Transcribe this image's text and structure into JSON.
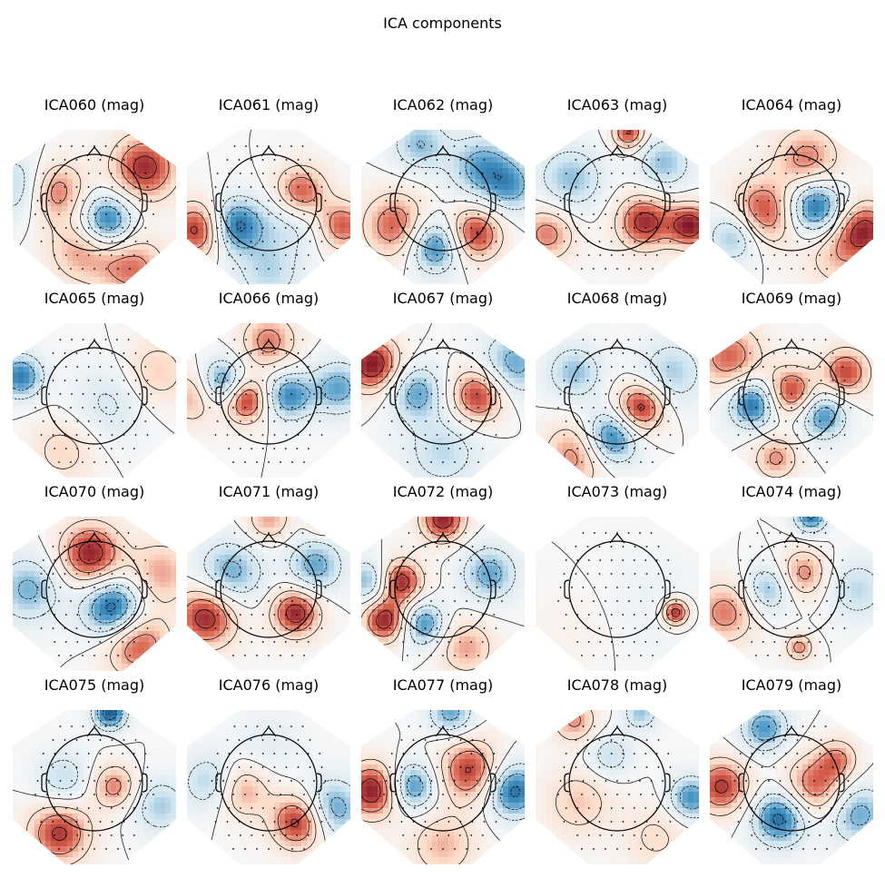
{
  "figure": {
    "title": "ICA components"
  },
  "grid": {
    "rows": 4,
    "cols": 5
  },
  "colormap": {
    "negative": "#053061",
    "neutral": "#f7f7f7",
    "positive": "#67001f",
    "contour_color": "#000000"
  },
  "panels": [
    {
      "title": "ICA060 (mag)",
      "blobs": [
        {
          "u": -0.55,
          "v": -0.15,
          "s": 0.28,
          "a": 0.8
        },
        {
          "u": 0.15,
          "v": 0.25,
          "s": 0.25,
          "a": -0.9
        },
        {
          "u": 0.65,
          "v": -0.45,
          "s": 0.3,
          "a": 0.85
        },
        {
          "u": -0.15,
          "v": 0.6,
          "s": 0.3,
          "a": 0.55
        },
        {
          "u": -0.9,
          "v": -0.2,
          "s": 0.3,
          "a": -0.6
        },
        {
          "u": 0.5,
          "v": 0.85,
          "s": 0.3,
          "a": 0.6
        }
      ]
    },
    {
      "title": "ICA061 (mag)",
      "blobs": [
        {
          "u": 0.4,
          "v": -0.1,
          "s": 0.25,
          "a": 0.95
        },
        {
          "u": -0.9,
          "v": 0.35,
          "s": 0.25,
          "a": 0.9
        },
        {
          "u": -0.45,
          "v": 0.3,
          "s": 0.25,
          "a": -0.85
        },
        {
          "u": 0.3,
          "v": 0.15,
          "s": 0.3,
          "a": -0.5
        },
        {
          "u": 0.95,
          "v": 0.3,
          "s": 0.22,
          "a": 0.7
        },
        {
          "u": 0.0,
          "v": 0.9,
          "s": 0.3,
          "a": -0.4
        }
      ]
    },
    {
      "title": "ICA062 (mag)",
      "blobs": [
        {
          "u": -0.1,
          "v": 0.55,
          "s": 0.25,
          "a": -0.85
        },
        {
          "u": 0.4,
          "v": 0.4,
          "s": 0.25,
          "a": 0.85
        },
        {
          "u": -0.6,
          "v": 0.3,
          "s": 0.3,
          "a": 0.7
        },
        {
          "u": 0.5,
          "v": -0.45,
          "s": 0.3,
          "a": -0.6
        },
        {
          "u": -0.3,
          "v": -0.75,
          "s": 0.25,
          "a": -0.5
        },
        {
          "u": 0.9,
          "v": -0.2,
          "s": 0.25,
          "a": -0.5
        }
      ]
    },
    {
      "title": "ICA063 (mag)",
      "blobs": [
        {
          "u": 0.35,
          "v": 0.25,
          "s": 0.25,
          "a": 0.85
        },
        {
          "u": 0.95,
          "v": 0.3,
          "s": 0.2,
          "a": 0.9
        },
        {
          "u": -0.6,
          "v": -0.3,
          "s": 0.3,
          "a": -0.5
        },
        {
          "u": -0.9,
          "v": 0.4,
          "s": 0.25,
          "a": 0.6
        },
        {
          "u": 0.15,
          "v": -0.9,
          "s": 0.15,
          "a": 0.8
        },
        {
          "u": 0.6,
          "v": -0.5,
          "s": 0.25,
          "a": -0.5
        }
      ]
    },
    {
      "title": "ICA064 (mag)",
      "blobs": [
        {
          "u": 0.3,
          "v": 0.05,
          "s": 0.25,
          "a": -0.9
        },
        {
          "u": -0.4,
          "v": 0.15,
          "s": 0.3,
          "a": 0.85
        },
        {
          "u": -0.7,
          "v": 0.4,
          "s": 0.25,
          "a": -0.7
        },
        {
          "u": 0.95,
          "v": 0.35,
          "s": 0.25,
          "a": 0.8
        },
        {
          "u": 0.2,
          "v": -0.55,
          "s": 0.3,
          "a": 0.6
        },
        {
          "u": 0.6,
          "v": 0.7,
          "s": 0.3,
          "a": 0.4
        }
      ]
    },
    {
      "title": "ICA065 (mag)",
      "blobs": [
        {
          "u": -0.95,
          "v": -0.25,
          "s": 0.2,
          "a": -0.75
        },
        {
          "u": 0.8,
          "v": -0.3,
          "s": 0.3,
          "a": 0.4
        },
        {
          "u": -0.4,
          "v": 0.7,
          "s": 0.3,
          "a": 0.35
        },
        {
          "u": 0.2,
          "v": 0.1,
          "s": 0.35,
          "a": -0.3
        }
      ]
    },
    {
      "title": "ICA066 (mag)",
      "blobs": [
        {
          "u": -0.3,
          "v": 0.05,
          "s": 0.2,
          "a": 0.95
        },
        {
          "u": -0.6,
          "v": -0.15,
          "s": 0.22,
          "a": -0.85
        },
        {
          "u": 0.25,
          "v": 0.0,
          "s": 0.22,
          "a": -0.7
        },
        {
          "u": 0.9,
          "v": -0.1,
          "s": 0.25,
          "a": -0.6
        },
        {
          "u": -0.95,
          "v": 0.0,
          "s": 0.25,
          "a": 0.55
        },
        {
          "u": 0.0,
          "v": -0.7,
          "s": 0.25,
          "a": 0.6
        }
      ]
    },
    {
      "title": "ICA067 (mag)",
      "blobs": [
        {
          "u": -0.9,
          "v": -0.4,
          "s": 0.25,
          "a": 0.95
        },
        {
          "u": 0.45,
          "v": 0.0,
          "s": 0.25,
          "a": 0.85
        },
        {
          "u": -0.35,
          "v": -0.05,
          "s": 0.25,
          "a": -0.6
        },
        {
          "u": 0.9,
          "v": -0.4,
          "s": 0.3,
          "a": -0.6
        },
        {
          "u": 0.0,
          "v": 0.7,
          "s": 0.35,
          "a": -0.4
        }
      ]
    },
    {
      "title": "ICA068 (mag)",
      "blobs": [
        {
          "u": 0.3,
          "v": 0.15,
          "s": 0.22,
          "a": 0.9
        },
        {
          "u": -0.1,
          "v": 0.55,
          "s": 0.25,
          "a": -0.9
        },
        {
          "u": -0.5,
          "v": 0.75,
          "s": 0.3,
          "a": 0.65
        },
        {
          "u": -0.55,
          "v": -0.3,
          "s": 0.25,
          "a": -0.5
        },
        {
          "u": 0.7,
          "v": -0.3,
          "s": 0.3,
          "a": -0.45
        }
      ]
    },
    {
      "title": "ICA069 (mag)",
      "blobs": [
        {
          "u": 0.0,
          "v": -0.05,
          "s": 0.22,
          "a": 0.8
        },
        {
          "u": -0.5,
          "v": 0.1,
          "s": 0.22,
          "a": -0.85
        },
        {
          "u": 0.4,
          "v": 0.25,
          "s": 0.22,
          "a": -0.7
        },
        {
          "u": 0.7,
          "v": -0.3,
          "s": 0.22,
          "a": 0.75
        },
        {
          "u": -0.8,
          "v": -0.5,
          "s": 0.3,
          "a": 0.65
        },
        {
          "u": -0.2,
          "v": 0.8,
          "s": 0.2,
          "a": 0.55
        }
      ]
    },
    {
      "title": "ICA070 (mag)",
      "blobs": [
        {
          "u": -0.05,
          "v": -0.45,
          "s": 0.28,
          "a": 0.9
        },
        {
          "u": 0.25,
          "v": 0.25,
          "s": 0.28,
          "a": -0.95
        },
        {
          "u": -0.85,
          "v": 0.0,
          "s": 0.3,
          "a": -0.55
        },
        {
          "u": 0.55,
          "v": 0.7,
          "s": 0.3,
          "a": 0.75
        },
        {
          "u": 0.85,
          "v": -0.2,
          "s": 0.3,
          "a": 0.5
        }
      ]
    },
    {
      "title": "ICA071 (mag)",
      "blobs": [
        {
          "u": -0.8,
          "v": 0.35,
          "s": 0.28,
          "a": 0.9
        },
        {
          "u": 0.35,
          "v": 0.3,
          "s": 0.22,
          "a": 0.9
        },
        {
          "u": -0.5,
          "v": -0.2,
          "s": 0.3,
          "a": -0.6
        },
        {
          "u": 0.6,
          "v": -0.3,
          "s": 0.25,
          "a": -0.6
        },
        {
          "u": 0.0,
          "v": -0.9,
          "s": 0.2,
          "a": 0.5
        },
        {
          "u": 0.7,
          "v": -0.9,
          "s": 0.12,
          "a": 0.7
        }
      ]
    },
    {
      "title": "ICA072 (mag)",
      "blobs": [
        {
          "u": -0.55,
          "v": -0.1,
          "s": 0.2,
          "a": 0.9
        },
        {
          "u": -0.75,
          "v": 0.4,
          "s": 0.2,
          "a": 0.9
        },
        {
          "u": -0.25,
          "v": 0.45,
          "s": 0.2,
          "a": -0.7
        },
        {
          "u": 0.0,
          "v": -0.9,
          "s": 0.2,
          "a": 0.9
        },
        {
          "u": 0.6,
          "v": -0.2,
          "s": 0.25,
          "a": -0.6
        },
        {
          "u": -0.95,
          "v": -0.1,
          "s": 0.2,
          "a": -0.6
        },
        {
          "u": 0.3,
          "v": 0.75,
          "s": 0.25,
          "a": 0.5
        }
      ]
    },
    {
      "title": "ICA073 (mag)",
      "blobs": [
        {
          "u": 0.75,
          "v": 0.3,
          "s": 0.12,
          "a": 0.95
        },
        {
          "u": 0.4,
          "v": 0.2,
          "s": 0.5,
          "a": -0.12
        },
        {
          "u": -0.5,
          "v": 0.5,
          "s": 0.4,
          "a": 0.1
        }
      ]
    },
    {
      "title": "ICA074 (mag)",
      "blobs": [
        {
          "u": 0.15,
          "v": -0.2,
          "s": 0.22,
          "a": 0.6
        },
        {
          "u": -0.3,
          "v": 0.0,
          "s": 0.22,
          "a": -0.55
        },
        {
          "u": 0.25,
          "v": -0.95,
          "s": 0.15,
          "a": -0.8
        },
        {
          "u": -0.85,
          "v": 0.3,
          "s": 0.28,
          "a": 0.6
        },
        {
          "u": 0.1,
          "v": 0.75,
          "s": 0.12,
          "a": 0.6
        },
        {
          "u": 0.85,
          "v": 0.0,
          "s": 0.28,
          "a": -0.4
        }
      ]
    },
    {
      "title": "ICA075 (mag)",
      "blobs": [
        {
          "u": 0.2,
          "v": -0.9,
          "s": 0.15,
          "a": -0.9
        },
        {
          "u": -0.45,
          "v": 0.65,
          "s": 0.28,
          "a": 0.8
        },
        {
          "u": 0.25,
          "v": 0.05,
          "s": 0.2,
          "a": 0.6
        },
        {
          "u": -0.4,
          "v": -0.05,
          "s": 0.25,
          "a": -0.4
        },
        {
          "u": 0.85,
          "v": 0.3,
          "s": 0.25,
          "a": -0.45
        }
      ]
    },
    {
      "title": "ICA076 (mag)",
      "blobs": [
        {
          "u": 0.4,
          "v": 0.5,
          "s": 0.25,
          "a": 0.95
        },
        {
          "u": -0.35,
          "v": 0.1,
          "s": 0.25,
          "a": 0.55
        },
        {
          "u": 0.8,
          "v": 0.35,
          "s": 0.28,
          "a": -0.7
        },
        {
          "u": -0.75,
          "v": 0.0,
          "s": 0.25,
          "a": -0.5
        },
        {
          "u": 0.0,
          "v": -0.5,
          "s": 0.3,
          "a": -0.2
        }
      ]
    },
    {
      "title": "ICA077 (mag)",
      "blobs": [
        {
          "u": -0.9,
          "v": 0.1,
          "s": 0.25,
          "a": 0.95
        },
        {
          "u": 0.35,
          "v": -0.15,
          "s": 0.28,
          "a": 0.8
        },
        {
          "u": -0.4,
          "v": 0.05,
          "s": 0.22,
          "a": -0.75
        },
        {
          "u": 0.9,
          "v": 0.1,
          "s": 0.25,
          "a": -0.85
        },
        {
          "u": 0.0,
          "v": 0.8,
          "s": 0.3,
          "a": 0.45
        },
        {
          "u": 0.1,
          "v": -0.9,
          "s": 0.2,
          "a": -0.6
        }
      ]
    },
    {
      "title": "ICA078 (mag)",
      "blobs": [
        {
          "u": -0.1,
          "v": -0.35,
          "s": 0.2,
          "a": -0.4
        },
        {
          "u": -0.5,
          "v": 0.25,
          "s": 0.3,
          "a": 0.4
        },
        {
          "u": 0.95,
          "v": 0.2,
          "s": 0.2,
          "a": -0.7
        },
        {
          "u": 0.3,
          "v": -0.9,
          "s": 0.15,
          "a": -0.5
        },
        {
          "u": -0.55,
          "v": -0.8,
          "s": 0.2,
          "a": 0.55
        },
        {
          "u": 0.5,
          "v": 0.7,
          "s": 0.3,
          "a": 0.3
        }
      ]
    },
    {
      "title": "ICA079 (mag)",
      "blobs": [
        {
          "u": 0.3,
          "v": 0.05,
          "s": 0.28,
          "a": 0.7
        },
        {
          "u": -0.15,
          "v": 0.45,
          "s": 0.25,
          "a": -0.85
        },
        {
          "u": -0.9,
          "v": 0.05,
          "s": 0.25,
          "a": 0.8
        },
        {
          "u": -0.35,
          "v": -0.7,
          "s": 0.22,
          "a": -0.65
        },
        {
          "u": 0.85,
          "v": 0.4,
          "s": 0.28,
          "a": -0.6
        },
        {
          "u": 0.6,
          "v": -0.3,
          "s": 0.18,
          "a": 0.5
        }
      ]
    }
  ]
}
